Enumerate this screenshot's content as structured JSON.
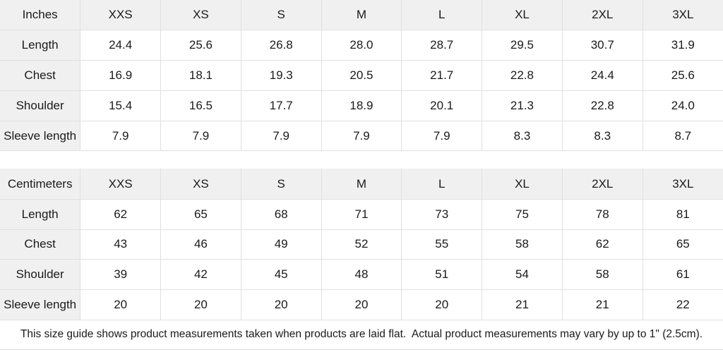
{
  "theme": {
    "header_bg": "#f0f0f1",
    "border_color": "#e0e0e0",
    "text_color": "#1a1a1a",
    "cell_bg": "#ffffff"
  },
  "tables": [
    {
      "unit": "Inches",
      "sizes": [
        "XXS",
        "XS",
        "S",
        "M",
        "L",
        "XL",
        "2XL",
        "3XL"
      ],
      "rows": [
        {
          "label": "Length",
          "values": [
            "24.4",
            "25.6",
            "26.8",
            "28.0",
            "28.7",
            "29.5",
            "30.7",
            "31.9"
          ]
        },
        {
          "label": "Chest",
          "values": [
            "16.9",
            "18.1",
            "19.3",
            "20.5",
            "21.7",
            "22.8",
            "24.4",
            "25.6"
          ]
        },
        {
          "label": "Shoulder",
          "values": [
            "15.4",
            "16.5",
            "17.7",
            "18.9",
            "20.1",
            "21.3",
            "22.8",
            "24.0"
          ]
        },
        {
          "label": "Sleeve length",
          "values": [
            "7.9",
            "7.9",
            "7.9",
            "7.9",
            "7.9",
            "8.3",
            "8.3",
            "8.7"
          ]
        }
      ]
    },
    {
      "unit": "Centimeters",
      "sizes": [
        "XXS",
        "XS",
        "S",
        "M",
        "L",
        "XL",
        "2XL",
        "3XL"
      ],
      "rows": [
        {
          "label": "Length",
          "values": [
            "62",
            "65",
            "68",
            "71",
            "73",
            "75",
            "78",
            "81"
          ]
        },
        {
          "label": "Chest",
          "values": [
            "43",
            "46",
            "49",
            "52",
            "55",
            "58",
            "62",
            "65"
          ]
        },
        {
          "label": "Shoulder",
          "values": [
            "39",
            "42",
            "45",
            "48",
            "51",
            "54",
            "58",
            "61"
          ]
        },
        {
          "label": "Sleeve length",
          "values": [
            "20",
            "20",
            "20",
            "20",
            "20",
            "21",
            "21",
            "22"
          ]
        }
      ]
    }
  ],
  "footer": {
    "note": "This size guide shows product measurements taken when products are laid flat.  Actual product measurements may vary by up to 1\" (2.5cm)."
  }
}
